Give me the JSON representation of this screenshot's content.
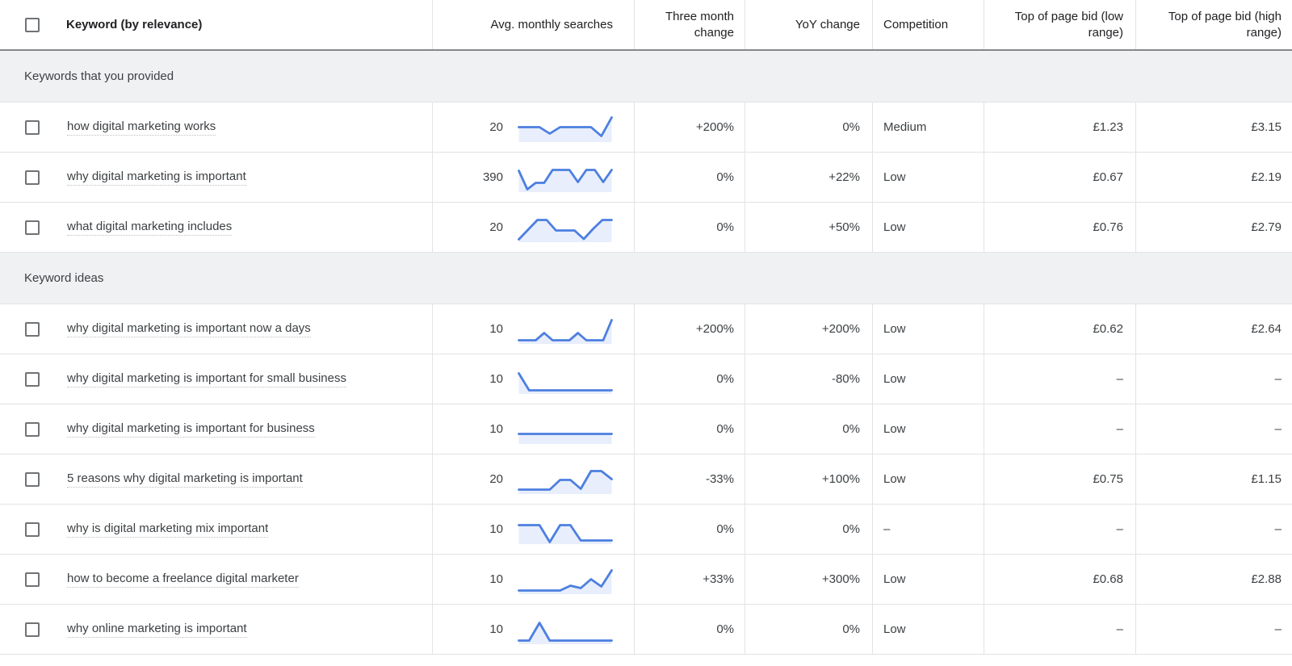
{
  "colors": {
    "accent_blue": "#4c7fe0",
    "spark_fill": "#e8eefb",
    "section_bg": "#f0f1f2",
    "grid_line": "#e3e3e3",
    "header_border": "#85878a",
    "text_primary": "#3c4043",
    "text_header": "#202124",
    "checkbox_border": "#6f7377"
  },
  "table": {
    "columns": [
      {
        "id": "keyword",
        "label": "Keyword (by relevance)"
      },
      {
        "id": "avg_monthly_searches",
        "label": "Avg. monthly searches"
      },
      {
        "id": "three_month_change",
        "label": "Three month change"
      },
      {
        "id": "yoy_change",
        "label": "YoY change"
      },
      {
        "id": "competition",
        "label": "Competition"
      },
      {
        "id": "top_of_page_bid_low",
        "label": "Top of page bid (low range)"
      },
      {
        "id": "top_of_page_bid_high",
        "label": "Top of page bid (high range)"
      }
    ],
    "sections": [
      {
        "title": "Keywords that you provided",
        "rows": [
          {
            "keyword": "how digital marketing works",
            "avg_monthly_searches": "20",
            "trend": [
              1.7,
              1.7,
              1.7,
              0.9,
              1.7,
              1.7,
              1.7,
              1.7,
              0.6,
              2.9
            ],
            "three_month_change": "+200%",
            "yoy_change": "0%",
            "competition": "Medium",
            "top_bid_low": "£1.23",
            "top_bid_high": "£3.15"
          },
          {
            "keyword": "why digital marketing is important",
            "avg_monthly_searches": "390",
            "trend": [
              2.5,
              0.2,
              1.0,
              1.0,
              2.6,
              2.6,
              2.6,
              1.1,
              2.6,
              2.6,
              1.1,
              2.6
            ],
            "three_month_change": "0%",
            "yoy_change": "+22%",
            "competition": "Low",
            "top_bid_low": "£0.67",
            "top_bid_high": "£2.19"
          },
          {
            "keyword": "what digital marketing includes",
            "avg_monthly_searches": "20",
            "trend": [
              0.2,
              1.4,
              2.6,
              2.6,
              1.3,
              1.3,
              1.3,
              0.25,
              1.5,
              2.6,
              2.6
            ],
            "three_month_change": "0%",
            "yoy_change": "+50%",
            "competition": "Low",
            "top_bid_low": "£0.76",
            "top_bid_high": "£2.79"
          }
        ]
      },
      {
        "title": "Keyword ideas",
        "rows": [
          {
            "keyword": "why digital marketing is important now a days",
            "avg_monthly_searches": "10",
            "trend": [
              0.3,
              0.3,
              0.3,
              1.2,
              0.3,
              0.3,
              0.3,
              1.2,
              0.3,
              0.3,
              0.3,
              2.8
            ],
            "three_month_change": "+200%",
            "yoy_change": "+200%",
            "competition": "Low",
            "top_bid_low": "£0.62",
            "top_bid_high": "£2.64"
          },
          {
            "keyword": "why digital marketing is important for small business",
            "avg_monthly_searches": "10",
            "trend": [
              2.4,
              0.3,
              0.3,
              0.3,
              0.3,
              0.3,
              0.3,
              0.3,
              0.3,
              0.3
            ],
            "three_month_change": "0%",
            "yoy_change": "-80%",
            "competition": "Low",
            "top_bid_low": "–",
            "top_bid_high": "–"
          },
          {
            "keyword": "why digital marketing is important for business",
            "avg_monthly_searches": "10",
            "trend": [
              1.1,
              1.1,
              1.1,
              1.1,
              1.1,
              1.1,
              1.1,
              1.1,
              1.1,
              1.1
            ],
            "three_month_change": "0%",
            "yoy_change": "0%",
            "competition": "Low",
            "top_bid_low": "–",
            "top_bid_high": "–"
          },
          {
            "keyword": "5 reasons why digital marketing is important",
            "avg_monthly_searches": "20",
            "trend": [
              0.4,
              0.4,
              0.4,
              0.4,
              1.6,
              1.6,
              0.5,
              2.7,
              2.7,
              1.7
            ],
            "three_month_change": "-33%",
            "yoy_change": "+100%",
            "competition": "Low",
            "top_bid_low": "£0.75",
            "top_bid_high": "£1.15"
          },
          {
            "keyword": "why is digital marketing mix important",
            "avg_monthly_searches": "10",
            "trend": [
              2.2,
              2.2,
              2.2,
              0.1,
              2.2,
              2.2,
              0.3,
              0.3,
              0.3,
              0.3
            ],
            "three_month_change": "0%",
            "yoy_change": "0%",
            "competition": "–",
            "top_bid_low": "–",
            "top_bid_high": "–"
          },
          {
            "keyword": "how to become a freelance digital marketer",
            "avg_monthly_searches": "10",
            "trend": [
              0.3,
              0.3,
              0.3,
              0.3,
              0.3,
              0.9,
              0.6,
              1.7,
              0.8,
              2.8
            ],
            "three_month_change": "+33%",
            "yoy_change": "+300%",
            "competition": "Low",
            "top_bid_low": "£0.68",
            "top_bid_high": "£2.88"
          },
          {
            "keyword": "why online marketing is important",
            "avg_monthly_searches": "10",
            "trend": [
              0.3,
              0.3,
              2.5,
              0.3,
              0.3,
              0.3,
              0.3,
              0.3,
              0.3,
              0.3
            ],
            "three_month_change": "0%",
            "yoy_change": "0%",
            "competition": "Low",
            "top_bid_low": "–",
            "top_bid_high": "–"
          }
        ]
      }
    ]
  }
}
